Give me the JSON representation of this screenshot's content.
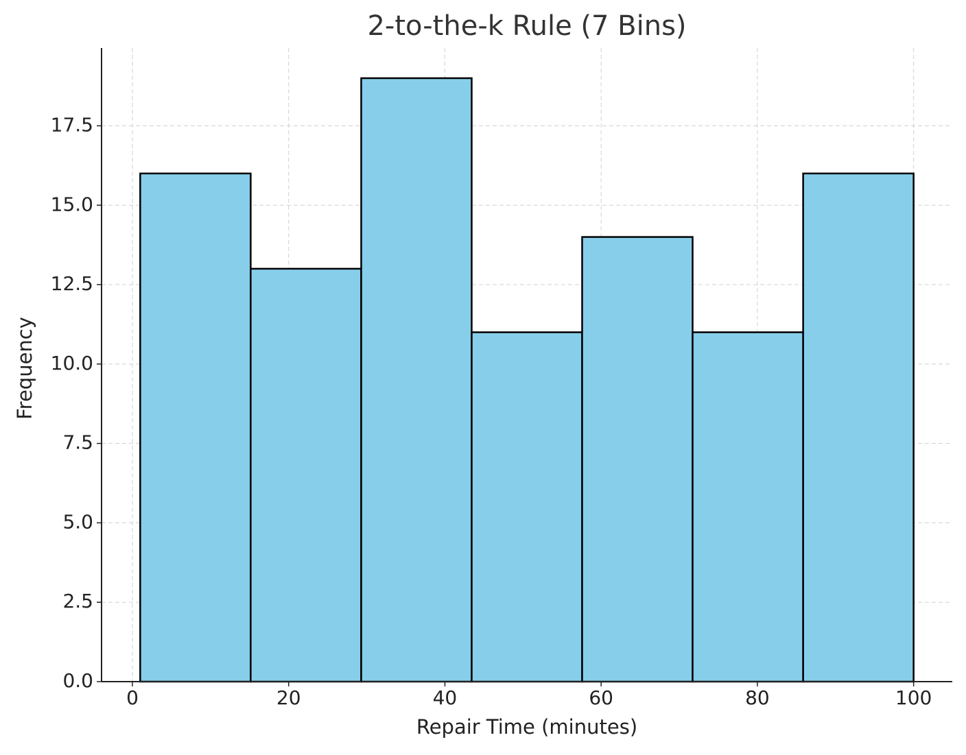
{
  "chart_data": {
    "type": "histogram",
    "title": "2-to-the-k Rule (7 Bins)",
    "x_label": "Repair Time (minutes)",
    "y_label": "Frequency",
    "bins": [
      1,
      15.14,
      29.29,
      43.43,
      57.57,
      71.71,
      85.86,
      100
    ],
    "values": [
      16,
      13,
      19,
      11,
      14,
      11,
      16
    ],
    "color": "#87ceeb",
    "edge_color": "#000000",
    "xlim": [
      -3.95,
      104.95
    ],
    "ylim": [
      0,
      19.95
    ],
    "xticks": [
      0,
      20,
      40,
      60,
      80,
      100
    ],
    "yticks": [
      {
        "value": 0,
        "label": "0.0"
      },
      2.5,
      {
        "value": 5,
        "label": "5.0"
      },
      7.5,
      {
        "value": 10,
        "label": "10.0"
      },
      12.5,
      {
        "value": 15,
        "label": "15.0"
      },
      17.5
    ],
    "grid": true
  }
}
